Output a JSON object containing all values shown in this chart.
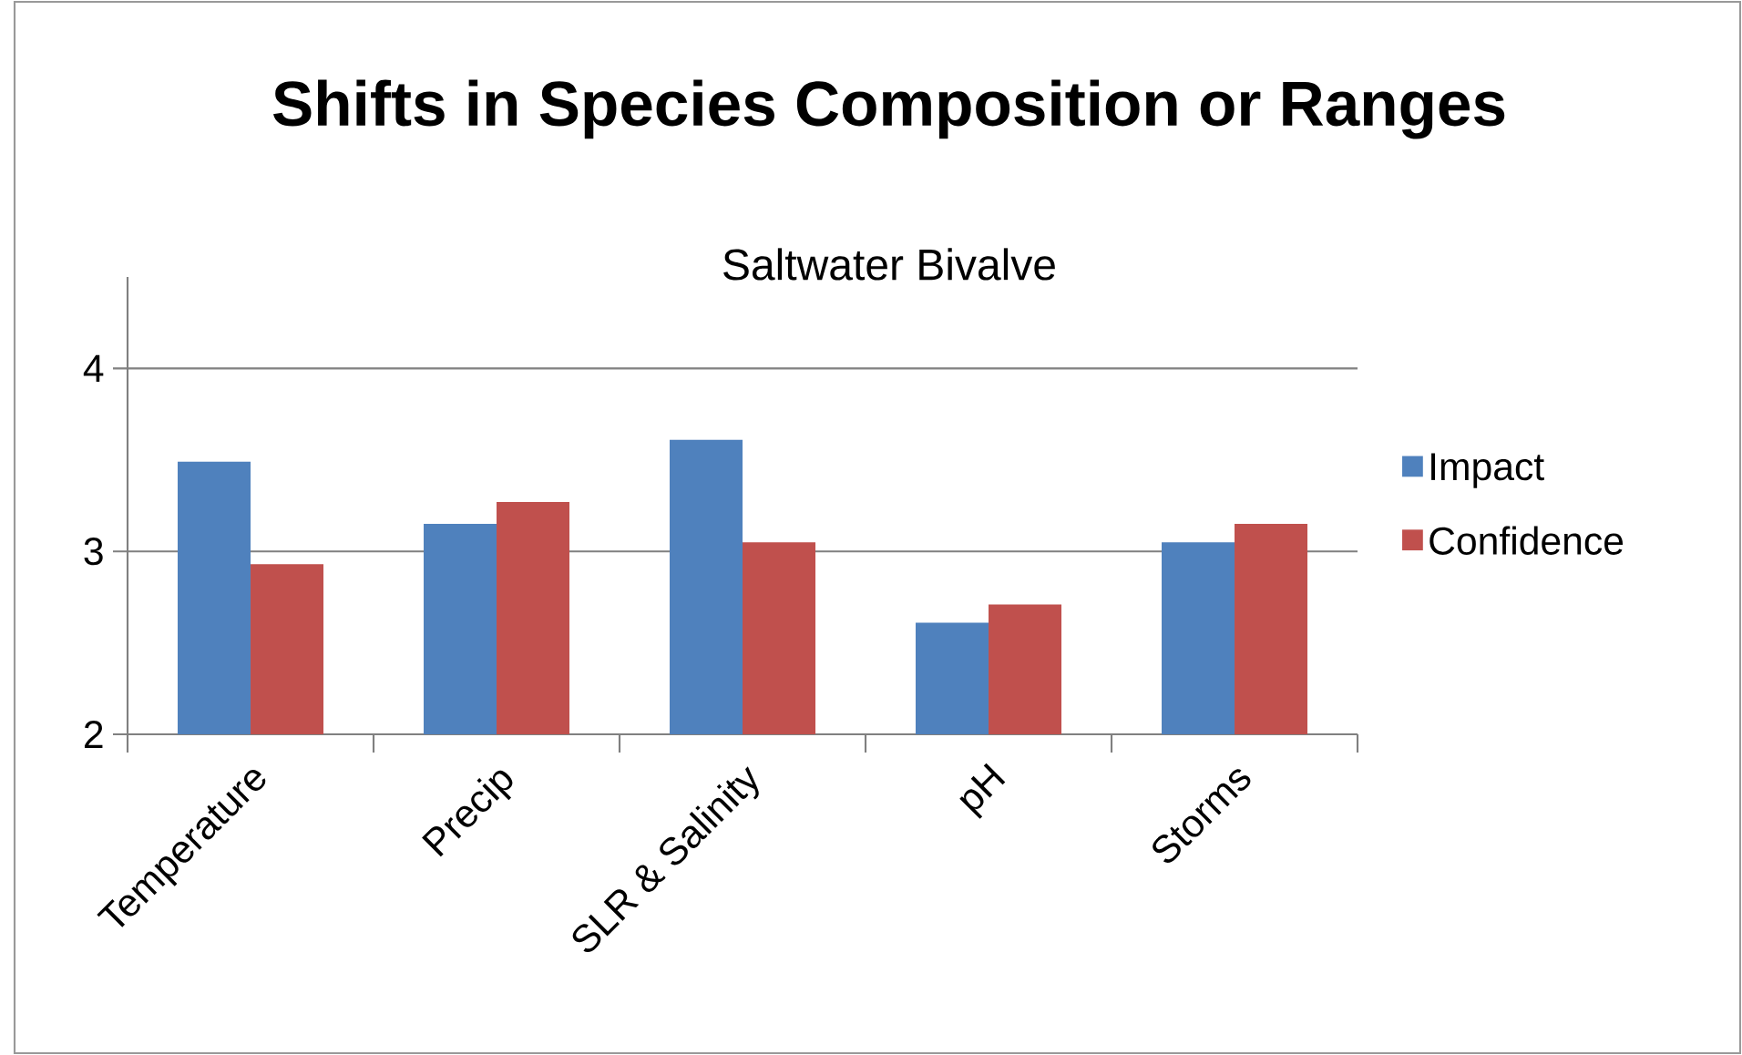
{
  "chart_data": {
    "type": "bar",
    "title": "Shifts in Species Composition  or Ranges",
    "subtitle": "Saltwater Bivalve",
    "categories": [
      "Temperature",
      "Precip",
      "SLR & Salinity",
      "pH",
      "Storms"
    ],
    "series": [
      {
        "name": "Impact",
        "color": "#4f81bd",
        "values": [
          3.49,
          3.15,
          3.61,
          2.61,
          3.05
        ]
      },
      {
        "name": "Confidence",
        "color": "#c0504d",
        "values": [
          2.93,
          3.27,
          3.05,
          2.71,
          3.15
        ]
      }
    ],
    "ylim": [
      2,
      4.5
    ],
    "yticks": [
      2,
      3,
      4
    ],
    "grid": "y",
    "legend": "right"
  }
}
